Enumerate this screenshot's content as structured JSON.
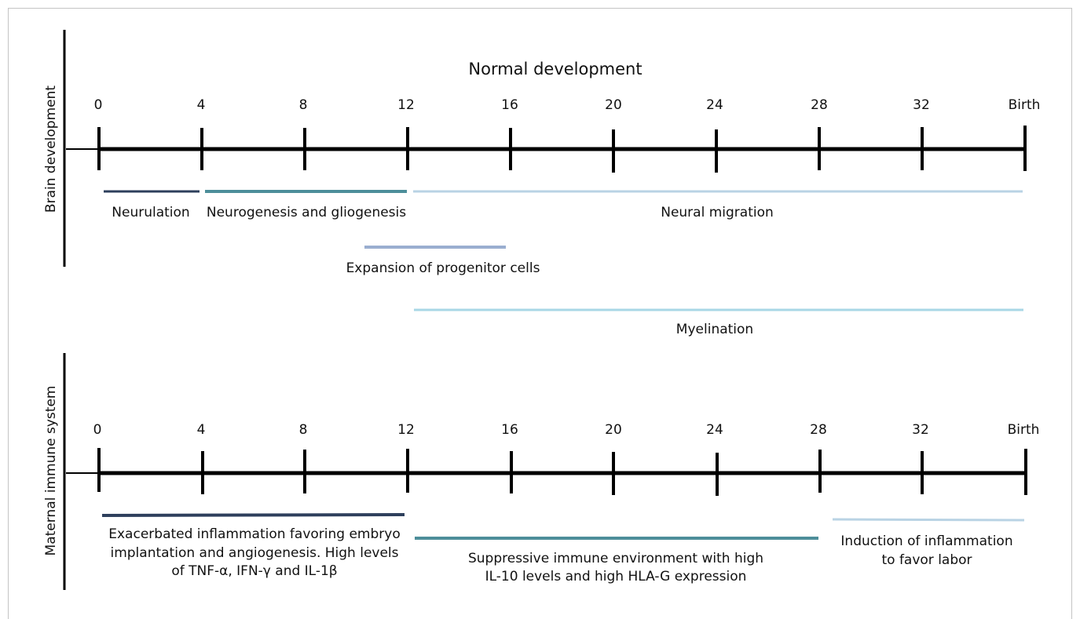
{
  "top": {
    "axis_title": "Brain development",
    "title": "Normal development",
    "ticks": [
      "0",
      "4",
      "8",
      "12",
      "16",
      "20",
      "24",
      "28",
      "32",
      "Birth"
    ],
    "labels": {
      "neurulation": "Neurulation",
      "neurogenesis": "Neurogenesis and gliogenesis",
      "migration": "Neural migration",
      "expansion": "Expansion of progenitor cells",
      "myelination": "Myelination"
    }
  },
  "bottom": {
    "axis_title": "Maternal immune system",
    "ticks": [
      "0",
      "4",
      "8",
      "12",
      "16",
      "20",
      "24",
      "28",
      "32",
      "Birth"
    ],
    "labels": {
      "early_1": "Exacerbated inflammation favoring embryo",
      "early_2": "implantation and angiogenesis. High levels",
      "early_3": "of TNF-α, IFN-γ and IL-1β",
      "mid_1": "Suppressive immune environment with high",
      "mid_2": "IL-10 levels and high HLA-G expression",
      "late_1": "Induction of inflammation",
      "late_2": "to favor labor"
    }
  },
  "colors": {
    "dark_navy": "#2e3f5c",
    "teal": "#4d8e9a",
    "pale_blue": "#b9d3e4",
    "lavender": "#9aaed0",
    "light_cyan": "#a8d7e6"
  }
}
